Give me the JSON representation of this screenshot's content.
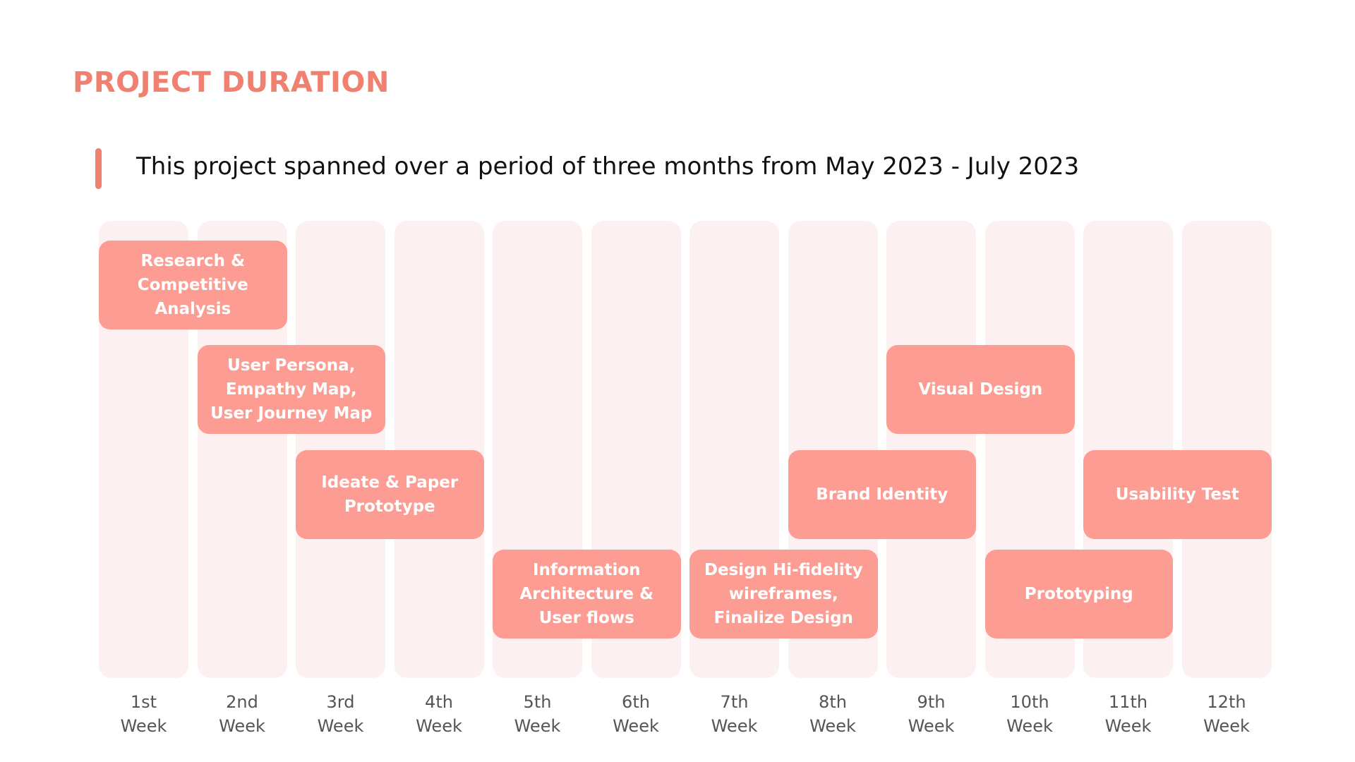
{
  "page": {
    "title": "PROJECT DURATION",
    "subtitle": "This project spanned over a period of three months from May 2023 - July 2023"
  },
  "colors": {
    "accent": "#f0806f",
    "task": "#fc9c92",
    "column": "#fcf0f0"
  },
  "weeks": [
    {
      "number": "1st",
      "unit": "Week"
    },
    {
      "number": "2nd",
      "unit": "Week"
    },
    {
      "number": "3rd",
      "unit": "Week"
    },
    {
      "number": "4th",
      "unit": "Week"
    },
    {
      "number": "5th",
      "unit": "Week"
    },
    {
      "number": "6th",
      "unit": "Week"
    },
    {
      "number": "7th",
      "unit": "Week"
    },
    {
      "number": "8th",
      "unit": "Week"
    },
    {
      "number": "9th",
      "unit": "Week"
    },
    {
      "number": "10th",
      "unit": "Week"
    },
    {
      "number": "11th",
      "unit": "Week"
    },
    {
      "number": "12th",
      "unit": "Week"
    }
  ],
  "tasks": [
    {
      "name": "research-task",
      "label": "Research &\nCompetitive Analysis",
      "start_week": 1,
      "end_week": 2,
      "row": 1
    },
    {
      "name": "user-persona-task",
      "label": "User Persona,\nEmpathy Map,\nUser Journey Map",
      "start_week": 2,
      "end_week": 3,
      "row": 2
    },
    {
      "name": "ideate-task",
      "label": "Ideate & Paper\nPrototype",
      "start_week": 3,
      "end_week": 4,
      "row": 3
    },
    {
      "name": "information-architecture-task",
      "label": "Information\nArchitecture &\nUser flows",
      "start_week": 5,
      "end_week": 6,
      "row": 4
    },
    {
      "name": "hi-fi-wireframes-task",
      "label": "Design Hi-fidelity\nwireframes,\nFinalize Design",
      "start_week": 7,
      "end_week": 8,
      "row": 4
    },
    {
      "name": "brand-identity-task",
      "label": "Brand Identity",
      "start_week": 8,
      "end_week": 9,
      "row": 3
    },
    {
      "name": "visual-design-task",
      "label": "Visual Design",
      "start_week": 9,
      "end_week": 10,
      "row": 2
    },
    {
      "name": "prototyping-task",
      "label": "Prototyping",
      "start_week": 10,
      "end_week": 11,
      "row": 4
    },
    {
      "name": "usability-test-task",
      "label": "Usability Test",
      "start_week": 11,
      "end_week": 12,
      "row": 3
    }
  ]
}
